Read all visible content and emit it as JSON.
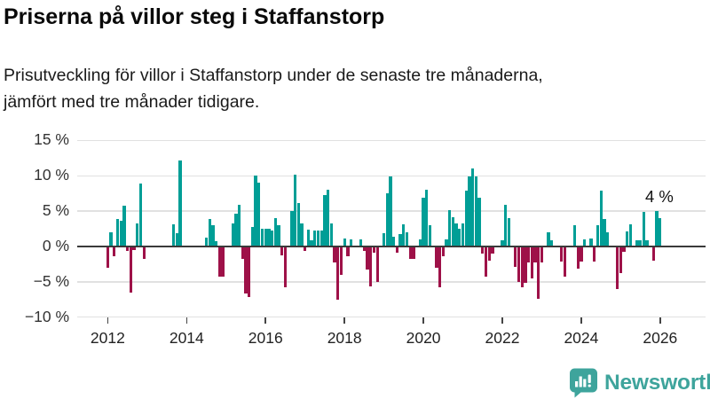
{
  "header": {
    "title": "Priserna på villor steg i Staffanstorp",
    "subtitle_lines": [
      "Prisutveckling för villor i Staffanstorp under de senaste tre månaderna,",
      "jämfört med tre månader tidigare."
    ]
  },
  "chart_data": {
    "type": "bar",
    "title": "Priserna på villor steg i Staffanstorp",
    "unit": "%",
    "start_month": "2011-12",
    "end_month": "2025-12",
    "cadence": "monthly",
    "ylim": [
      -10,
      15
    ],
    "grid": true,
    "y_ticks": [
      {
        "label": "15 %",
        "v": 15
      },
      {
        "label": "10 %",
        "v": 10
      },
      {
        "label": "5 %",
        "v": 5
      },
      {
        "label": "0 %",
        "v": 0
      },
      {
        "label": "−5 %",
        "v": -5
      },
      {
        "label": "−10 %",
        "v": -10
      }
    ],
    "x_ticks": [
      "2012",
      "2014",
      "2016",
      "2018",
      "2020",
      "2022",
      "2024",
      "2026"
    ],
    "annotation": {
      "text": "4 %",
      "value": 4.0,
      "target": "last-bar"
    },
    "colors": {
      "positive": "#009e96",
      "negative": "#9e1148"
    },
    "values": [
      -3.0,
      2.0,
      -1.4,
      3.9,
      3.6,
      5.8,
      -0.6,
      -6.5,
      -0.5,
      3.2,
      8.9,
      -1.8,
      null,
      null,
      null,
      null,
      null,
      null,
      null,
      null,
      3.1,
      1.9,
      12.1,
      null,
      null,
      null,
      null,
      null,
      null,
      null,
      1.2,
      3.9,
      3.0,
      0.8,
      -4.2,
      -4.2,
      null,
      null,
      3.3,
      4.6,
      5.9,
      -1.7,
      -6.7,
      -7.1,
      2.8,
      10.0,
      9.0,
      2.5,
      2.5,
      2.5,
      2.3,
      4.0,
      3.0,
      -1.3,
      -5.8,
      null,
      5.0,
      10.2,
      6.2,
      3.2,
      -0.6,
      2.4,
      0.9,
      2.2,
      2.2,
      2.2,
      7.3,
      8.0,
      3.2,
      -2.2,
      -7.5,
      -4.0,
      1.1,
      -1.4,
      1.0,
      null,
      null,
      1.0,
      -0.6,
      -3.3,
      -5.6,
      -0.9,
      -5.0,
      null,
      1.9,
      7.5,
      9.9,
      1.4,
      -0.9,
      1.8,
      3.1,
      2.0,
      -1.8,
      -1.8,
      null,
      1.0,
      6.9,
      8.0,
      3.0,
      null,
      -3.0,
      -5.8,
      -1.4,
      1.0,
      5.1,
      4.1,
      3.3,
      2.5,
      3.2,
      7.9,
      9.9,
      11.0,
      9.9,
      6.9,
      -1.0,
      -4.2,
      -2.0,
      -1.0,
      null,
      null,
      0.9,
      5.9,
      4.0,
      null,
      -2.9,
      -5.0,
      -5.8,
      -5.2,
      -2.3,
      -4.5,
      -2.3,
      -7.4,
      -2.2,
      null,
      2.0,
      0.9,
      null,
      null,
      -2.1,
      -4.2,
      null,
      null,
      3.0,
      -3.1,
      -2.1,
      1.0,
      null,
      1.1,
      -2.1,
      3.0,
      7.9,
      3.9,
      2.0,
      null,
      null,
      -6.0,
      -3.8,
      -0.8,
      2.1,
      3.1,
      null,
      0.9,
      0.9,
      4.9,
      0.9,
      null,
      -2.0,
      5.0,
      4.0
    ]
  },
  "footer": {
    "brand": "Newsworthy",
    "logo_color": "#3ea49c"
  }
}
